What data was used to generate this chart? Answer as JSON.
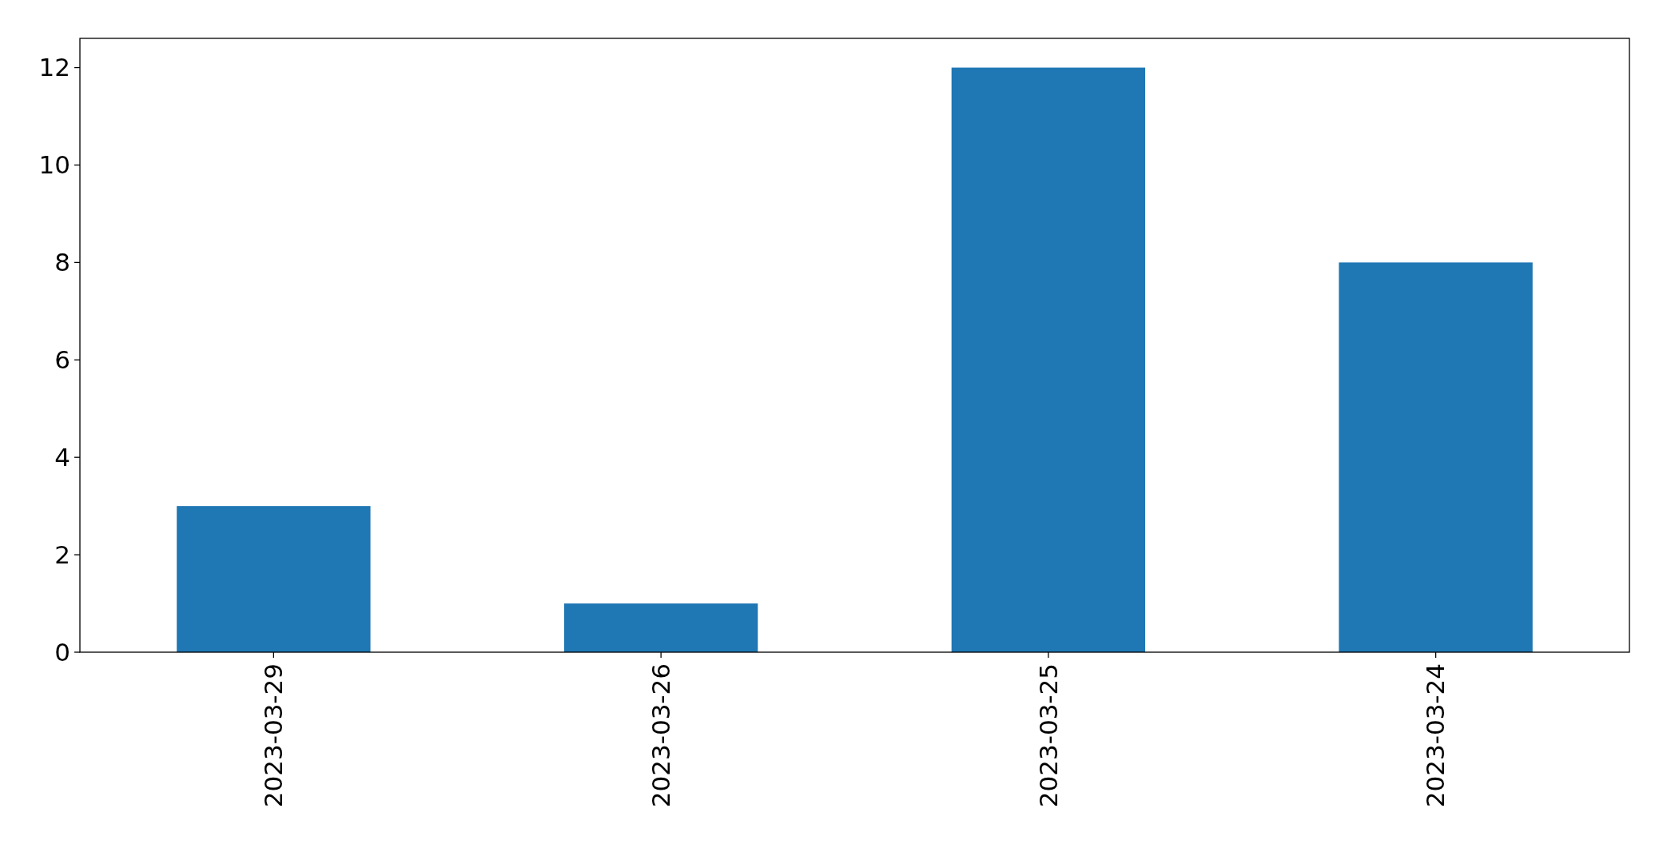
{
  "chart_data": {
    "type": "bar",
    "categories": [
      "2023-03-29",
      "2023-03-26",
      "2023-03-25",
      "2023-03-24"
    ],
    "values": [
      3,
      1,
      12,
      8
    ],
    "color": "#1f77b4",
    "ylim": [
      0,
      12.6
    ],
    "yticks": [
      0,
      2,
      4,
      6,
      8,
      10,
      12
    ],
    "grid": false
  }
}
